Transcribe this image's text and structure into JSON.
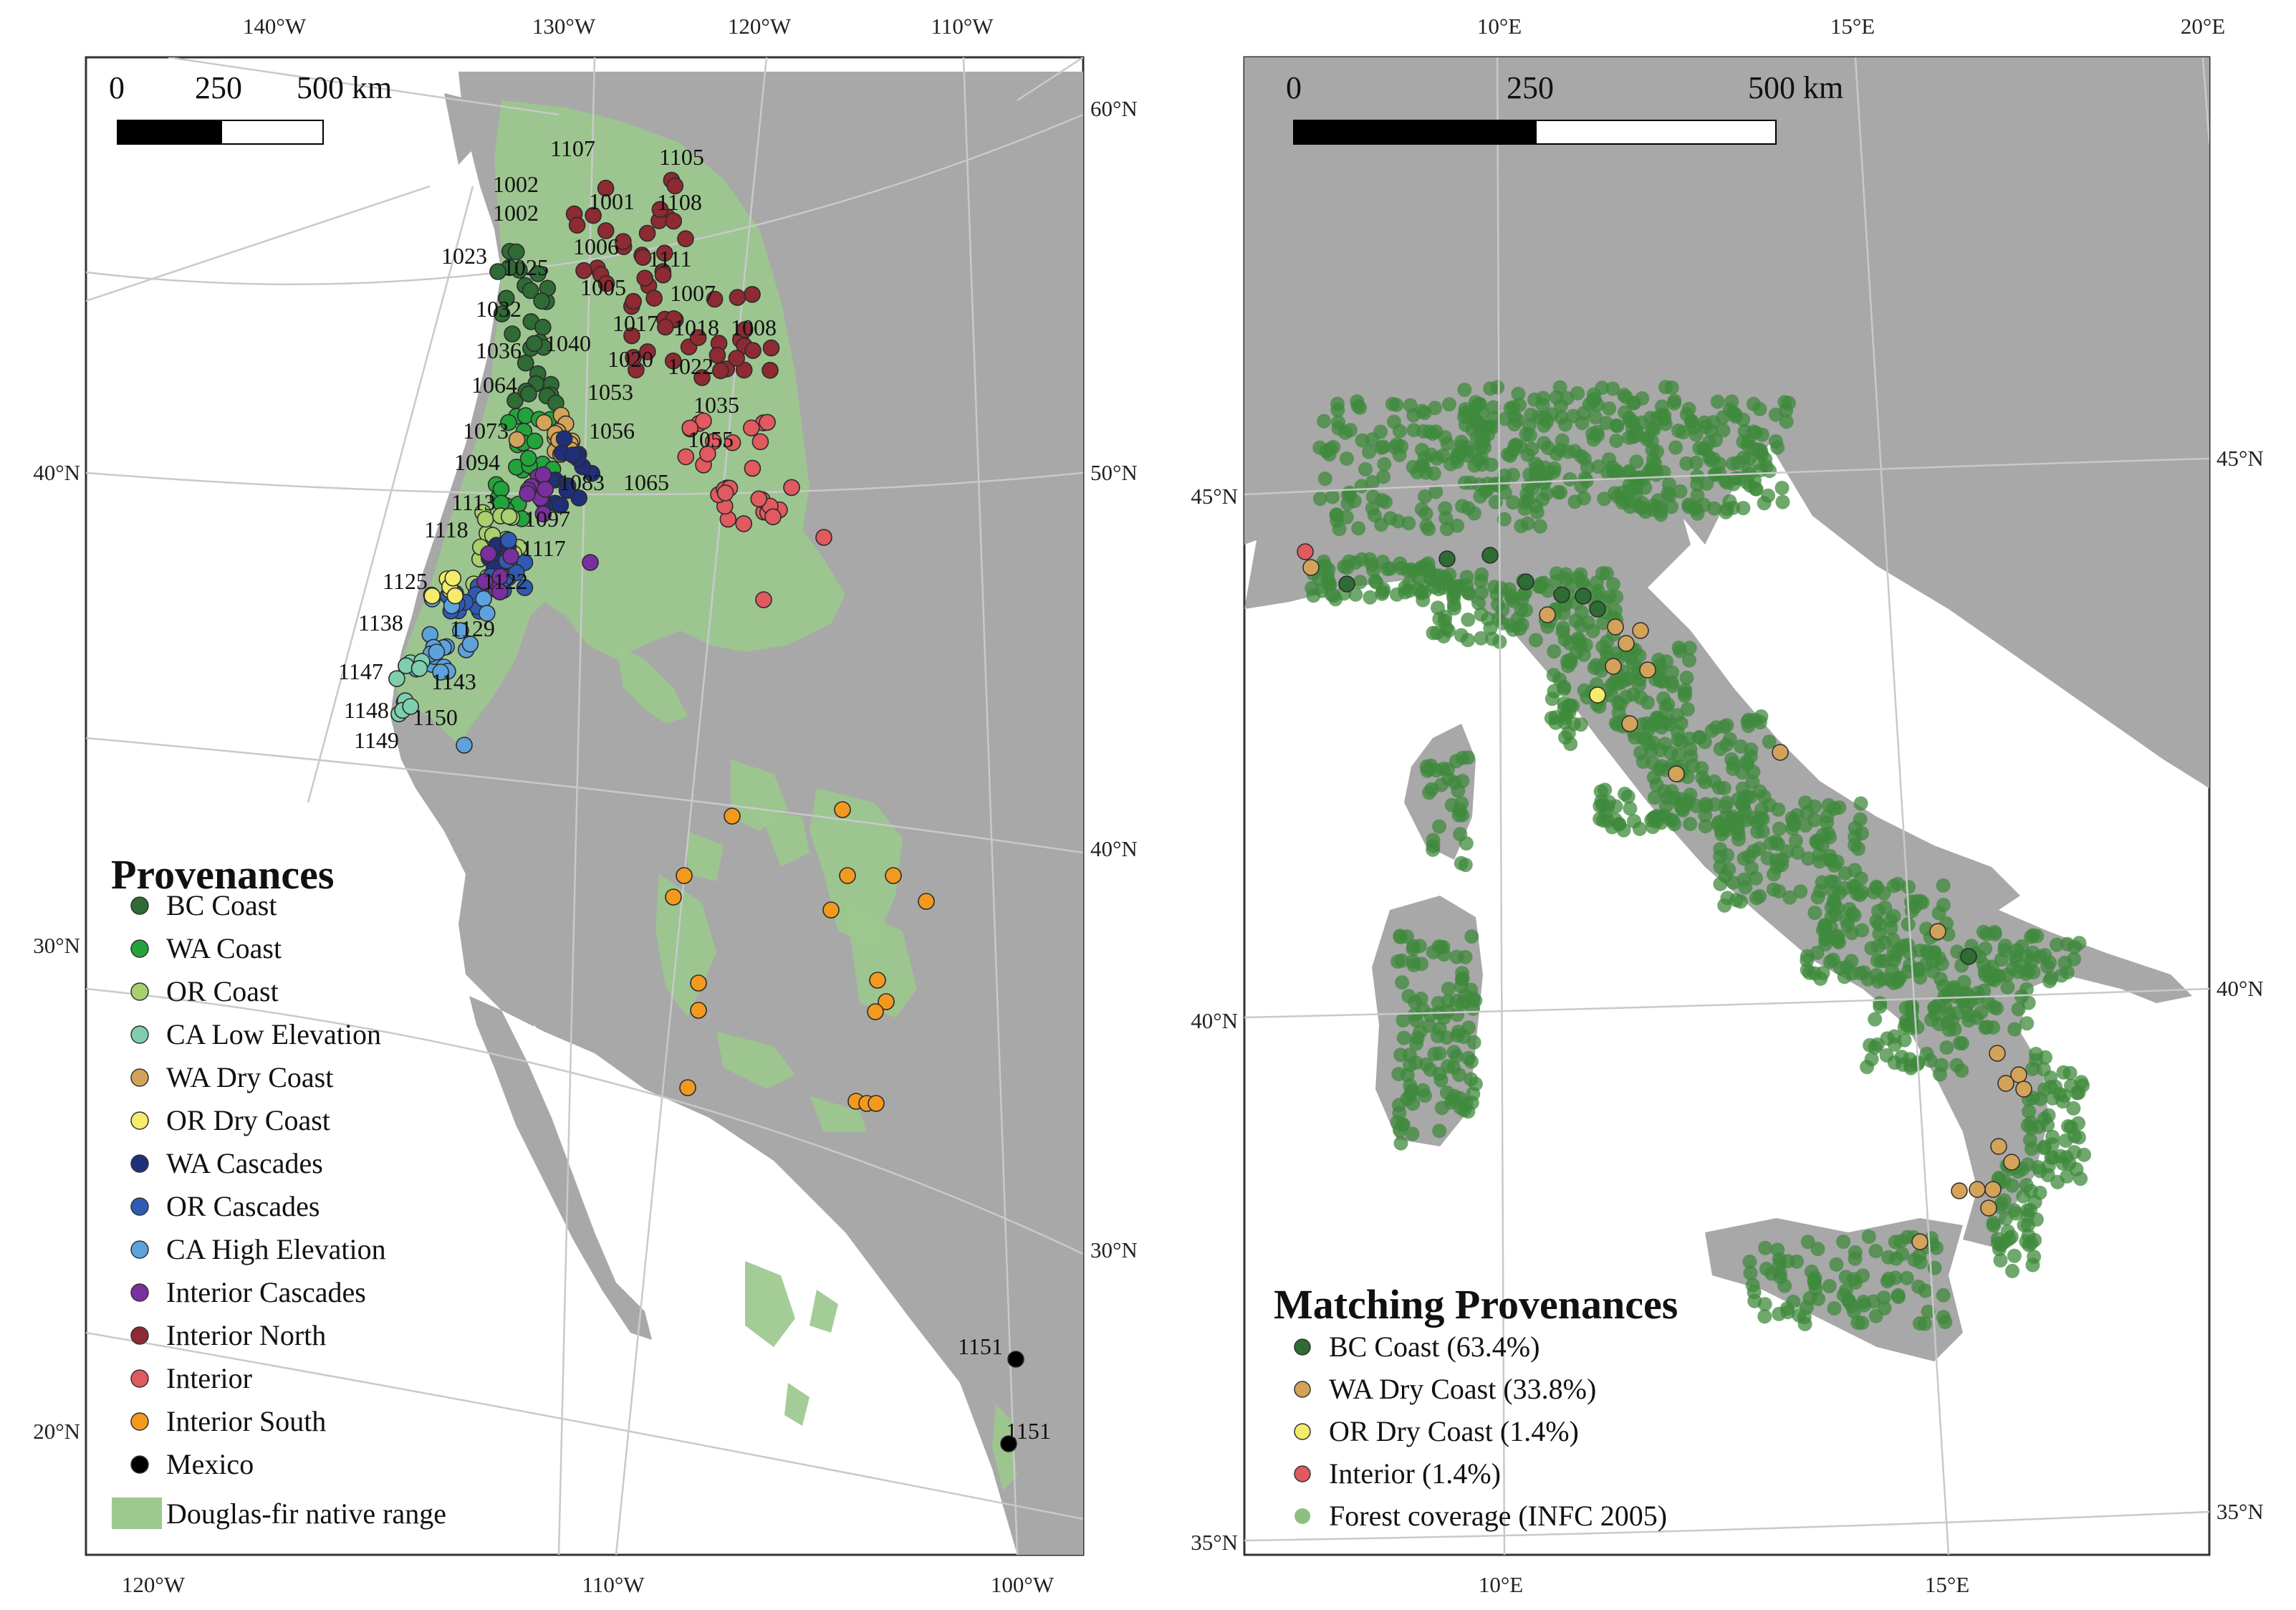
{
  "left_map": {
    "graticule_top": [
      "140°W",
      "130°W",
      "120°W",
      "110°W"
    ],
    "graticule_bottom": [
      "120°W",
      "110°W",
      "100°W"
    ],
    "graticule_left": [
      "40°N",
      "30°N",
      "20°N"
    ],
    "graticule_right": [
      "60°N",
      "50°N",
      "40°N",
      "30°N"
    ],
    "scale_bar": {
      "labels": [
        "0",
        "250",
        "500 km"
      ]
    },
    "legend": {
      "title": "Provenances",
      "items": [
        {
          "label": "BC Coast",
          "color": "#2e6b35"
        },
        {
          "label": "WA Coast",
          "color": "#22a33c"
        },
        {
          "label": "OR Coast",
          "color": "#a9cf6f"
        },
        {
          "label": "CA Low Elevation",
          "color": "#7fcfae"
        },
        {
          "label": "WA Dry Coast",
          "color": "#d3a35a"
        },
        {
          "label": "OR Dry Coast",
          "color": "#f4ec6a"
        },
        {
          "label": "WA Cascades",
          "color": "#1f2f7a"
        },
        {
          "label": "OR Cascades",
          "color": "#2f5bb5"
        },
        {
          "label": "CA High Elevation",
          "color": "#5ea2dd"
        },
        {
          "label": "Interior Cascades",
          "color": "#7a2f9e"
        },
        {
          "label": "Interior North",
          "color": "#8e2a32"
        },
        {
          "label": "Interior",
          "color": "#e05a5f"
        },
        {
          "label": "Interior South",
          "color": "#f39a1e"
        },
        {
          "label": "Mexico",
          "color": "#000000"
        }
      ],
      "range_item": {
        "label": "Douglas-fir native range",
        "color": "#9cc88e"
      }
    },
    "site_labels": [
      "1107",
      "1105",
      "1002",
      "1001",
      "1108",
      "1002",
      "1006",
      "1023",
      "1025",
      "1111",
      "1005",
      "1007",
      "1032",
      "1017",
      "1018",
      "1008",
      "1036",
      "1040",
      "1020",
      "1022",
      "1064",
      "1053",
      "1035",
      "1073",
      "1056",
      "1055",
      "1094",
      "1083",
      "1065",
      "1113",
      "1097",
      "1118",
      "1117",
      "1125",
      "1122",
      "1138",
      "1129",
      "1147",
      "1143",
      "1148",
      "1150",
      "1149",
      "1151",
      "1151"
    ]
  },
  "right_map": {
    "graticule_top": [
      "10°E",
      "15°E",
      "20°E"
    ],
    "graticule_bottom": [
      "10°E",
      "15°E"
    ],
    "graticule_left": [
      "45°N",
      "40°N",
      "35°N"
    ],
    "graticule_right": [
      "45°N",
      "40°N",
      "35°N"
    ],
    "scale_bar": {
      "labels": [
        "0",
        "250",
        "500 km"
      ]
    },
    "legend": {
      "title": "Matching Provenances",
      "items": [
        {
          "label": "BC Coast (63.4%)",
          "color": "#2e6b35"
        },
        {
          "label": "WA Dry Coast (33.8%)",
          "color": "#d3a35a"
        },
        {
          "label": "OR Dry Coast (1.4%)",
          "color": "#f4ec6a"
        },
        {
          "label": "Interior (1.4%)",
          "color": "#e05a5f"
        },
        {
          "label": "Forest coverage (INFC 2005)",
          "color": "#8cc083"
        }
      ]
    }
  }
}
